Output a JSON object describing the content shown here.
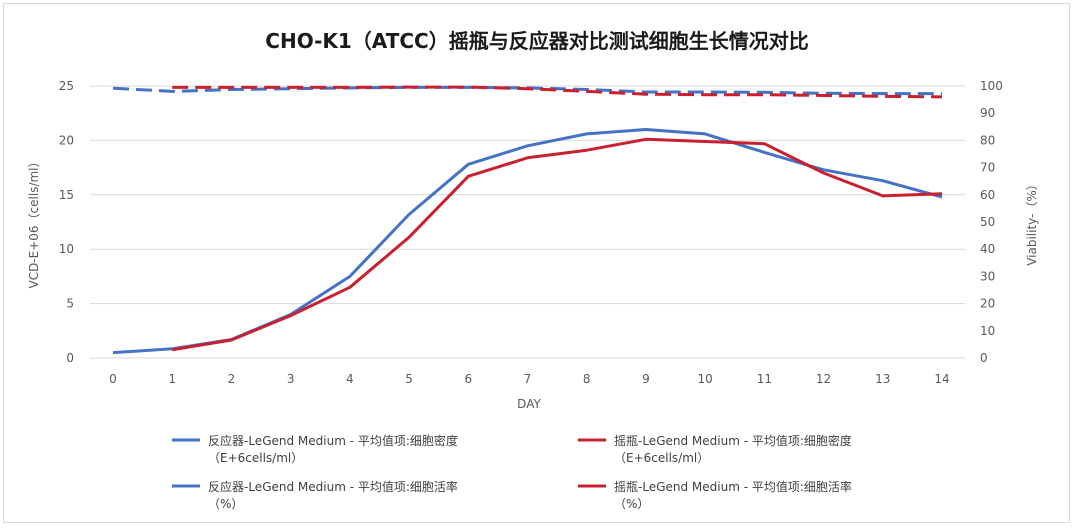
{
  "chart_data": {
    "type": "line",
    "title": "CHO-K1（ATCC）摇瓶与反应器对比测试细胞生长情况对比",
    "xlabel": "DAY",
    "ylabel": "VCD-E+06（cells/ml）",
    "y2label": "Viability-（%）",
    "x": [
      0,
      1,
      2,
      3,
      4,
      5,
      6,
      7,
      8,
      9,
      10,
      11,
      12,
      13,
      14
    ],
    "ylim": [
      0,
      25
    ],
    "yticks": [
      0,
      5,
      10,
      15,
      20,
      25
    ],
    "y2lim": [
      0,
      100
    ],
    "y2ticks": [
      0,
      10,
      20,
      30,
      40,
      50,
      60,
      70,
      80,
      90,
      100
    ],
    "grid": true,
    "legend_position": "bottom",
    "series": [
      {
        "name": "反应器-LeGend Medium - 平均值项:细胞密度",
        "name_line2": "（E+6cells/ml）",
        "axis": "left",
        "style": "solid",
        "color": "#4472C4",
        "values": [
          0.5,
          0.85,
          1.7,
          4.0,
          7.5,
          13.2,
          17.8,
          19.5,
          20.6,
          21.0,
          20.6,
          18.9,
          17.3,
          16.3,
          14.8
        ]
      },
      {
        "name": "摇瓶-LeGend Medium - 平均值项:细胞密度",
        "name_line2": "（E+6cells/ml）",
        "axis": "left",
        "style": "solid",
        "color": "#C9202F",
        "values": [
          null,
          0.75,
          1.65,
          3.9,
          6.5,
          11.1,
          16.7,
          18.4,
          19.1,
          20.1,
          19.9,
          19.7,
          17.0,
          14.9,
          15.1
        ]
      },
      {
        "name": "反应器-LeGend Medium - 平均值项:细胞活率",
        "name_line2": "（%）",
        "axis": "right",
        "style": "dashed",
        "color": "#4472C4",
        "values": [
          99.2,
          98.0,
          98.7,
          99.0,
          99.3,
          99.5,
          99.5,
          99.3,
          98.7,
          97.8,
          97.8,
          97.7,
          97.3,
          97.2,
          97.2
        ]
      },
      {
        "name": "摇瓶-LeGend Medium - 平均值项:细胞活率",
        "name_line2": "（%）",
        "axis": "right",
        "style": "dashed",
        "color": "#C9202F",
        "values": [
          null,
          99.5,
          99.5,
          99.5,
          99.5,
          99.6,
          99.6,
          99.0,
          98.0,
          97.0,
          96.8,
          96.8,
          96.5,
          96.2,
          96.0
        ]
      }
    ]
  }
}
